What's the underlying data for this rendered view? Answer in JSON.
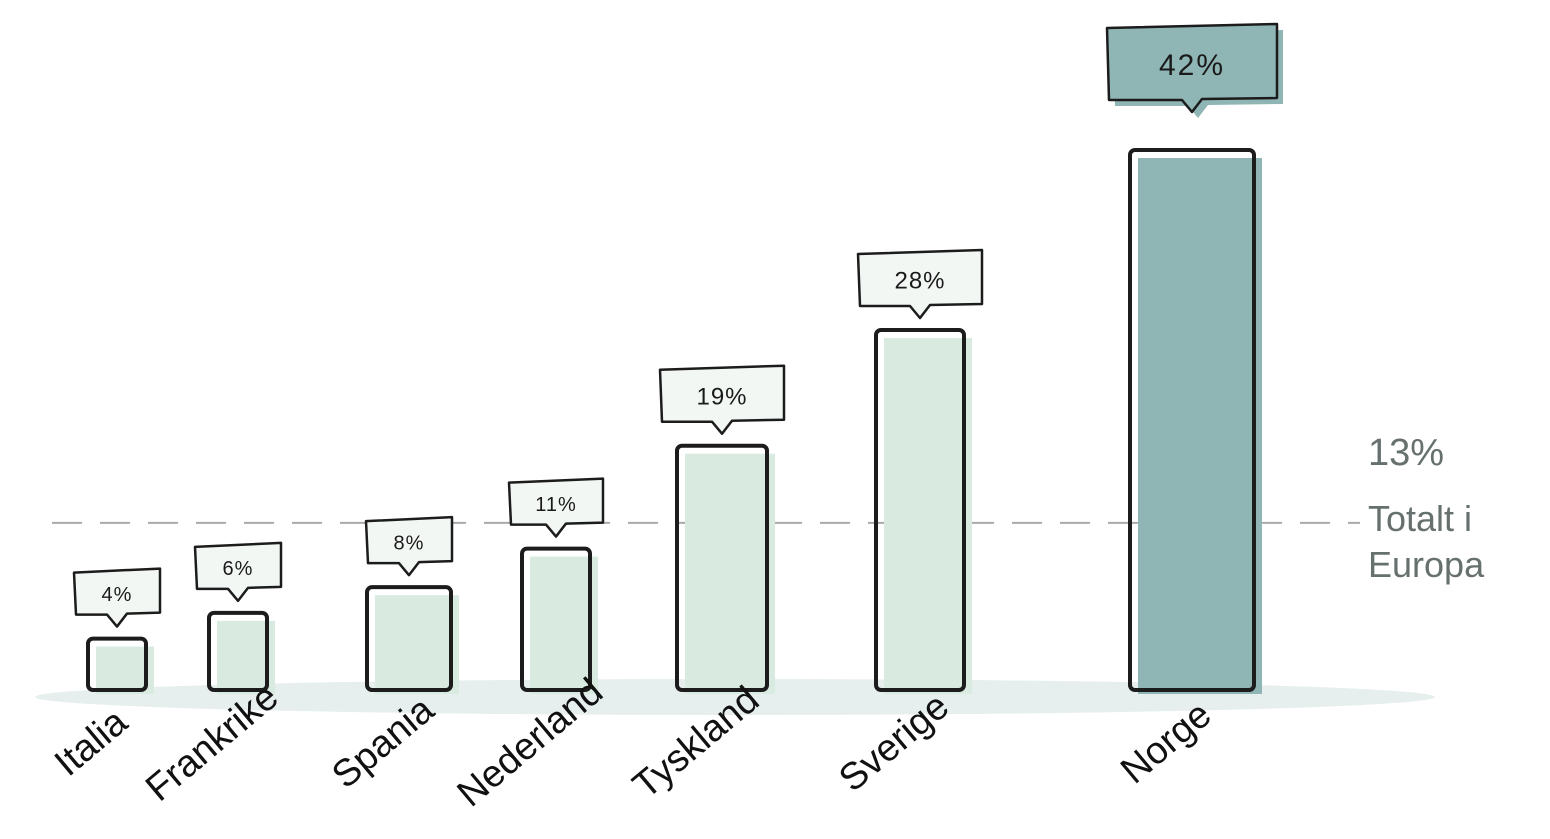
{
  "chart_data": {
    "type": "bar",
    "title": "",
    "xlabel": "",
    "ylabel": "",
    "categories": [
      "Italia",
      "Frankrike",
      "Spania",
      "Nederland",
      "Tyskland",
      "Sverige",
      "Norge"
    ],
    "values": [
      4,
      6,
      8,
      11,
      19,
      28,
      42
    ],
    "value_labels": [
      "4%",
      "6%",
      "8%",
      "11%",
      "19%",
      "28%",
      "42%"
    ],
    "ylim": [
      0,
      42
    ],
    "grid": false,
    "reference_line": {
      "value": 13,
      "label_value": "13%",
      "label_text": "Totalt i\nEuropa"
    },
    "colors": {
      "bar_fill": "#d9ebe1",
      "highlight_fill": "#8fb5b5",
      "outline": "#1c1c1c",
      "reference_line": "#a9a9a9",
      "reference_text": "#66706e",
      "floor_shadow": "#e6eeee"
    }
  }
}
